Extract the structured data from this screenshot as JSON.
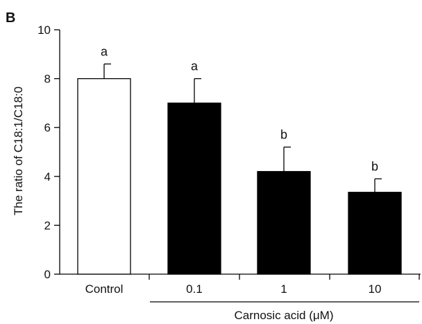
{
  "panel_label": "B",
  "chart_data": {
    "type": "bar",
    "categories": [
      "Control",
      "0.1",
      "1",
      "10"
    ],
    "values": [
      8.0,
      7.0,
      4.2,
      3.35
    ],
    "errors": [
      0.6,
      1.0,
      1.0,
      0.55
    ],
    "significance": [
      "a",
      "a",
      "b",
      "b"
    ],
    "bar_colors": [
      "#ffffff",
      "#000000",
      "#000000",
      "#000000"
    ],
    "ylabel": "The ratio of C18:1/C18:0",
    "xlabel": "",
    "group_label": "Carnosic acid (μM)",
    "group_members": [
      "0.1",
      "1",
      "10"
    ],
    "ylim": [
      0,
      10
    ],
    "yticks": [
      0,
      2,
      4,
      6,
      8,
      10
    ],
    "grid": false
  }
}
